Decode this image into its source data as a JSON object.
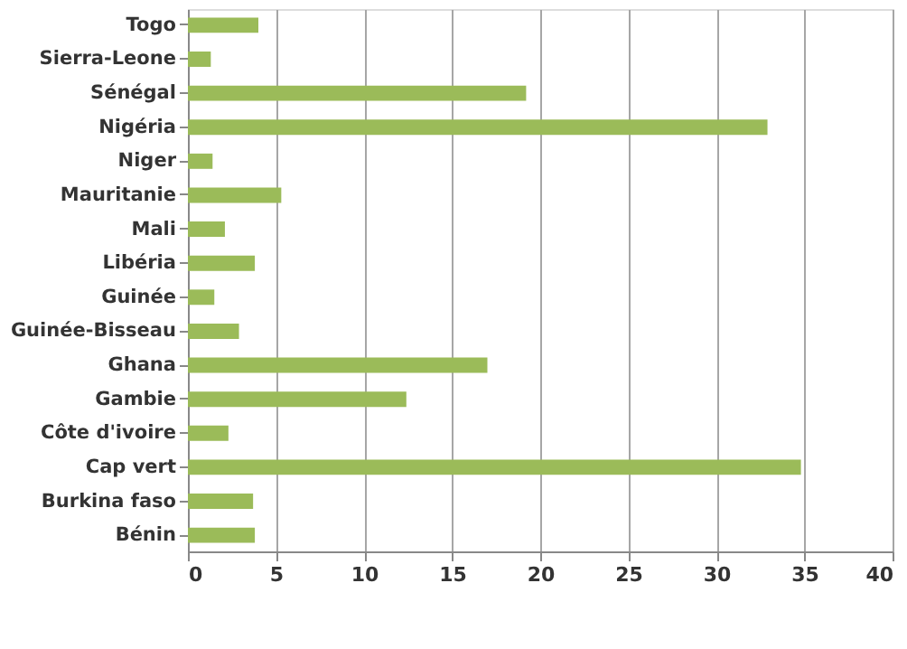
{
  "chart_data": {
    "type": "bar",
    "orientation": "horizontal",
    "categories": [
      "Togo",
      "Sierra-Leone",
      "Sénégal",
      "Nigéria",
      "Niger",
      "Mauritanie",
      "Mali",
      "Libéria",
      "Guinée",
      "Guinée-Bisseau",
      "Ghana",
      "Gambie",
      "Côte d'ivoire",
      "Cap vert",
      "Burkina faso",
      "Bénin"
    ],
    "values": [
      4.0,
      1.3,
      19.2,
      32.9,
      1.4,
      5.3,
      2.1,
      3.8,
      1.5,
      2.9,
      17.0,
      12.4,
      2.3,
      34.8,
      3.7,
      3.8
    ],
    "color": "#9bbb59",
    "xlim": [
      0,
      40
    ],
    "xticks": [
      0,
      5,
      10,
      15,
      20,
      25,
      30,
      35,
      40
    ],
    "grid": "x"
  }
}
